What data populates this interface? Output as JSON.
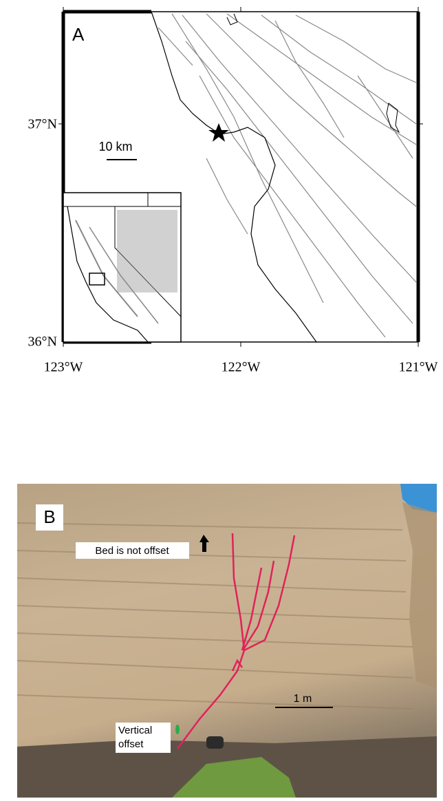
{
  "map": {
    "panel_label": "A",
    "scale_bar": "10 km",
    "lat_labels": [
      "37°N",
      "36°N"
    ],
    "lon_labels": [
      "123°W",
      "122°W",
      "121°W"
    ]
  },
  "photo": {
    "panel_label": "B",
    "annotations": [
      "Bed is not offset",
      "Vertical offset"
    ],
    "scale_bar": "1 m"
  }
}
